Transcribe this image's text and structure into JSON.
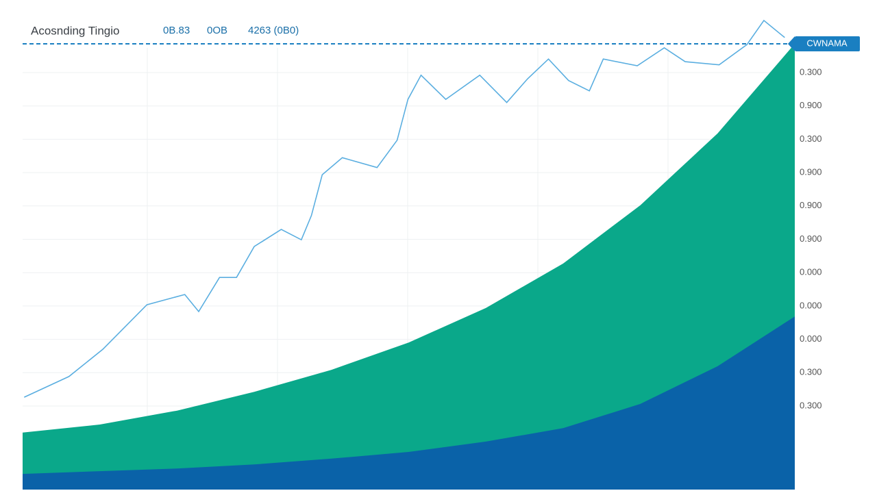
{
  "chart_data": {
    "type": "line",
    "title": "Acosnding Tingio",
    "header_values": [
      "0B.83",
      "0OB",
      "4263 (0B0)"
    ],
    "price_label": "CWNAMA",
    "y_axis_labels": [
      "0.300",
      "0.900",
      "0.300",
      "0.900",
      "0.900",
      "0.900",
      "0.000",
      "0.000",
      "0.000",
      "0.300",
      "0.300"
    ],
    "xlim": [
      0,
      100
    ],
    "ylim": [
      0,
      100
    ],
    "series": [
      {
        "type": "area",
        "color": "#0aa88a",
        "x": [
          0,
          10,
          20,
          30,
          40,
          50,
          60,
          70,
          80,
          90,
          100
        ],
        "values": [
          12.7,
          14.5,
          17.6,
          21.8,
          26.7,
          32.8,
          40.5,
          50.4,
          63.4,
          79.4,
          99.4
        ]
      },
      {
        "type": "area",
        "color": "#0a62a8",
        "x": [
          0,
          10,
          20,
          30,
          40,
          50,
          60,
          70,
          80,
          90,
          100
        ],
        "values": [
          3.5,
          4.1,
          4.7,
          5.6,
          6.9,
          8.4,
          10.7,
          13.7,
          19.1,
          27.5,
          38.6
        ]
      },
      {
        "type": "line",
        "color": "#5aaee0",
        "x": [
          0.2,
          6,
          10.4,
          16.1,
          21,
          22.8,
          25.5,
          27.7,
          30,
          33.5,
          36.1,
          37.4,
          38.8,
          41.4,
          45.9,
          48.5,
          49.9,
          51.6,
          54.8,
          59.2,
          62.7,
          65.4,
          68.1,
          70.7,
          73.4,
          75.2,
          79.6,
          83.1,
          85.8,
          90.2,
          93.8,
          96,
          98.7
        ],
        "values": [
          20.6,
          25.2,
          31.3,
          41.2,
          43.5,
          39.7,
          47.3,
          47.3,
          54.2,
          58,
          55.7,
          61.1,
          70.2,
          74,
          71.8,
          77.9,
          87,
          92.4,
          87,
          92.4,
          86.3,
          91.6,
          96,
          91.2,
          88.9,
          96,
          94.5,
          98.5,
          95.4,
          94.7,
          99.2,
          104.6,
          100.8
        ]
      }
    ]
  }
}
